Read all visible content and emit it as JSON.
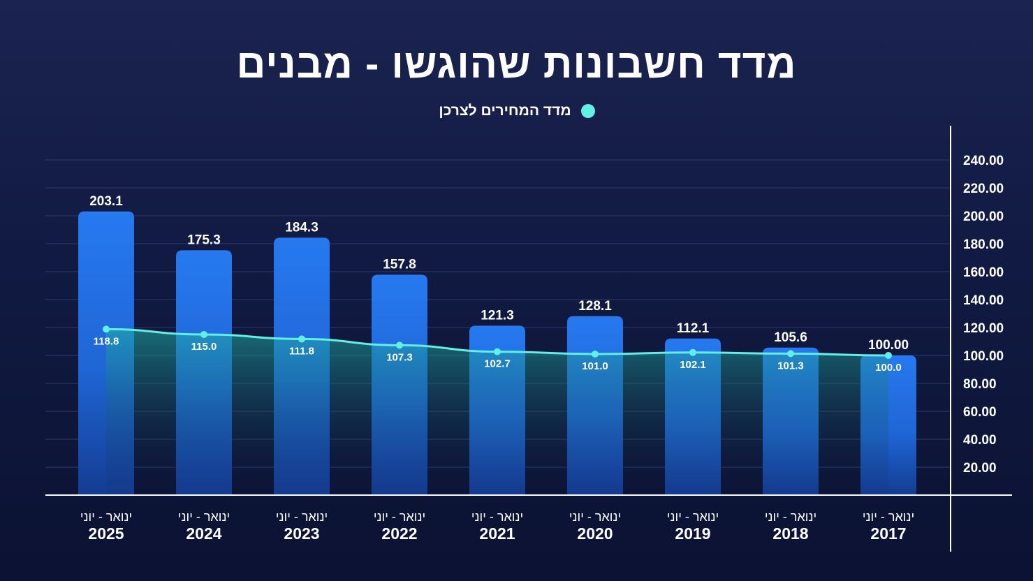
{
  "chart_data": {
    "type": "bar",
    "title": "מדד חשבונות שהוגשו - מבנים",
    "legend": {
      "placement": "top-center",
      "entries": [
        {
          "label": "מדד המחירים לצרכן",
          "color": "#62f0e6"
        }
      ]
    },
    "categories": [
      {
        "period": "ינואר - יוני",
        "year": "2025"
      },
      {
        "period": "ינואר - יוני",
        "year": "2024"
      },
      {
        "period": "ינואר - יוני",
        "year": "2023"
      },
      {
        "period": "ינואר - יוני",
        "year": "2022"
      },
      {
        "period": "ינואר - יוני",
        "year": "2021"
      },
      {
        "period": "ינואר - יוני",
        "year": "2020"
      },
      {
        "period": "ינואר - יוני",
        "year": "2019"
      },
      {
        "period": "ינואר - יוני",
        "year": "2018"
      },
      {
        "period": "ינואר - יוני",
        "year": "2017"
      }
    ],
    "series": [
      {
        "type": "bar",
        "values": [
          203.1,
          175.3,
          184.3,
          157.8,
          121.3,
          128.1,
          112.1,
          105.6,
          100.0
        ],
        "labels": [
          "203.1",
          "175.3",
          "184.3",
          "157.8",
          "121.3",
          "128.1",
          "112.1",
          "105.6",
          "100.00"
        ],
        "color": "#2779f0"
      },
      {
        "type": "line",
        "name": "מדד המחירים לצרכן",
        "values": [
          118.8,
          115.0,
          111.8,
          107.3,
          102.7,
          101.0,
          102.1,
          101.3,
          100.0
        ],
        "labels": [
          "118.8",
          "115.0",
          "111.8",
          "107.3",
          "102.7",
          "101.0",
          "102.1",
          "101.3",
          "100.0"
        ],
        "color": "#62f0e6"
      }
    ],
    "ylim": [
      0,
      260
    ],
    "yticks": [
      "20.00",
      "40.00",
      "60.00",
      "80.00",
      "100.00",
      "120.00",
      "140.00",
      "160.00",
      "180.00",
      "200.00",
      "220.00",
      "240.00"
    ],
    "yaxis_side": "right",
    "grid": true
  }
}
